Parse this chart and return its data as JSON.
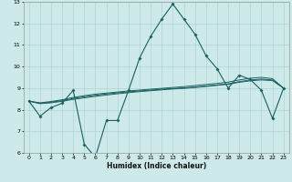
{
  "xlabel": "Humidex (Indice chaleur)",
  "bg_color": "#cde9e9",
  "grid_color": "#b2d4d4",
  "line_color": "#1a6060",
  "xlim": [
    -0.5,
    23.5
  ],
  "ylim": [
    6,
    13
  ],
  "yticks": [
    6,
    7,
    8,
    9,
    10,
    11,
    12,
    13
  ],
  "xticks": [
    0,
    1,
    2,
    3,
    4,
    5,
    6,
    7,
    8,
    9,
    10,
    11,
    12,
    13,
    14,
    15,
    16,
    17,
    18,
    19,
    20,
    21,
    22,
    23
  ],
  "series_main": [
    8.4,
    7.7,
    8.1,
    8.3,
    8.9,
    6.4,
    5.8,
    7.5,
    7.5,
    8.9,
    10.4,
    11.4,
    12.2,
    12.9,
    12.2,
    11.5,
    10.5,
    9.9,
    9.0,
    9.6,
    9.4,
    8.9,
    7.6,
    9.0
  ],
  "series_smooth": [
    [
      8.4,
      8.3,
      8.35,
      8.42,
      8.52,
      8.6,
      8.67,
      8.73,
      8.78,
      8.83,
      8.87,
      8.91,
      8.95,
      8.98,
      9.01,
      9.05,
      9.1,
      9.15,
      9.2,
      9.3,
      9.38,
      9.42,
      9.38,
      9.0
    ],
    [
      8.4,
      8.32,
      8.38,
      8.46,
      8.57,
      8.65,
      8.72,
      8.77,
      8.82,
      8.87,
      8.91,
      8.95,
      8.99,
      9.03,
      9.07,
      9.12,
      9.17,
      9.22,
      9.28,
      9.38,
      9.46,
      9.5,
      9.44,
      9.0
    ],
    [
      8.4,
      8.28,
      8.32,
      8.39,
      8.48,
      8.55,
      8.62,
      8.68,
      8.74,
      8.79,
      8.84,
      8.88,
      8.92,
      8.96,
      8.99,
      9.03,
      9.08,
      9.13,
      9.18,
      9.27,
      9.34,
      9.38,
      9.35,
      9.0
    ]
  ]
}
